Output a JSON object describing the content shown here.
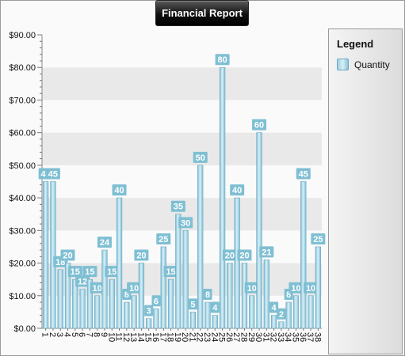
{
  "title": "Financial Report",
  "legend": {
    "title": "Legend",
    "items": [
      {
        "label": "Quantity",
        "color": "#8cc4d8"
      }
    ]
  },
  "chart_data": {
    "type": "bar",
    "categories": [
      "1",
      "2",
      "3",
      "4",
      "5",
      "6",
      "7",
      "8",
      "9",
      "10",
      "11",
      "12",
      "13",
      "14",
      "15",
      "16",
      "17",
      "18",
      "19",
      "20",
      "21",
      "22",
      "23",
      "24",
      "25",
      "26",
      "27",
      "28",
      "29",
      "30",
      "31",
      "32",
      "33",
      "34",
      "35",
      "36",
      "37",
      "38"
    ],
    "series": [
      {
        "name": "Quantity",
        "values": [
          45,
          45,
          18,
          20,
          15,
          12,
          15,
          10,
          24,
          15,
          40,
          8,
          10,
          20,
          3,
          6,
          25,
          15,
          35,
          30,
          5,
          50,
          8,
          4,
          80,
          20,
          40,
          20,
          10,
          60,
          21,
          4,
          2,
          8,
          10,
          45,
          10,
          25
        ]
      }
    ],
    "y_tick_labels": [
      "$0.00",
      "$10.00",
      "$20.00",
      "$30.00",
      "$40.00",
      "$50.00",
      "$60.00",
      "$70.00",
      "$80.00",
      "$90.00"
    ],
    "ylim": [
      0,
      90
    ],
    "grid": "alternating horizontal bands",
    "legend_position": "right",
    "bar_color": "#8cc4d8",
    "label_color": "#7fbfd3"
  }
}
